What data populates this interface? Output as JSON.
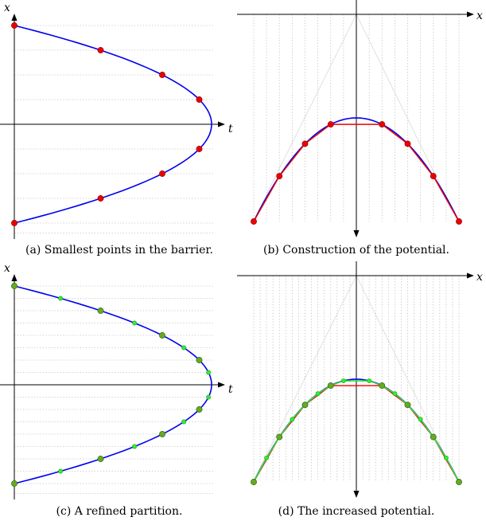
{
  "panels": {
    "a": {
      "caption": "(a) Smallest points in the barrier.",
      "x_label": "x",
      "t_label": "t"
    },
    "b": {
      "caption": "(b) Construction of the potential.",
      "x_label": "x"
    },
    "c": {
      "caption": "(c) A refined partition.",
      "x_label": "x",
      "t_label": "t"
    },
    "d": {
      "caption": "(d) The increased potential.",
      "x_label": "x"
    }
  },
  "colors": {
    "curve": "#0000ee",
    "coarse_point": "#ee0000",
    "refined_point": "#33ee33",
    "overlap_point": "#66aa22",
    "hull_coarse": "#ee0000",
    "hull_refined": "#33dd33",
    "grid": "#b8b8b8"
  },
  "chart_data": [
    {
      "panel": "a",
      "type": "line",
      "title": "Smallest points in the barrier",
      "xlabel": "t",
      "ylabel": "x",
      "curve": "t = 1 - x^2 (parabola opening to the left)",
      "xlim": [
        0,
        1.05
      ],
      "ylim": [
        -1.05,
        1.05
      ],
      "points_x": [
        -1,
        -0.75,
        -0.5,
        -0.25,
        0.25,
        0.5,
        0.75,
        1
      ],
      "point_color": "red",
      "grid_rows_x": [
        -1.1,
        -1,
        -0.75,
        -0.5,
        -0.25,
        0.25,
        0.5,
        0.75,
        1
      ]
    },
    {
      "panel": "b",
      "type": "line",
      "title": "Construction of the potential",
      "xlabel": "x",
      "curve": "y = 1.05 - x^2 (inverted parabola, axis pointing down)",
      "xlim": [
        -1.05,
        1.05
      ],
      "ylim": [
        0,
        1.1
      ],
      "points_x": [
        -1,
        -0.75,
        -0.5,
        -0.25,
        0.25,
        0.5,
        0.75,
        1
      ],
      "point_color": "red",
      "grid_columns_x": [
        -1,
        -0.875,
        -0.75,
        -0.625,
        -0.5,
        -0.375,
        -0.25,
        -0.125,
        0.125,
        0.25,
        0.375,
        0.5,
        0.625,
        0.75,
        0.875,
        1
      ]
    },
    {
      "panel": "c",
      "type": "line",
      "title": "A refined partition",
      "xlabel": "t",
      "ylabel": "x",
      "curve": "t = 1 - x^2",
      "xlim": [
        0,
        1.05
      ],
      "ylim": [
        -1.05,
        1.05
      ],
      "coarse_points_x": [
        -1,
        -0.75,
        -0.5,
        -0.25,
        0.25,
        0.5,
        0.75,
        1
      ],
      "refined_points_x": [
        -0.875,
        -0.625,
        -0.375,
        -0.125,
        0.125,
        0.375,
        0.625,
        0.875
      ],
      "grid_rows_x": [
        -1.1,
        -1,
        -0.875,
        -0.75,
        -0.625,
        -0.5,
        -0.375,
        -0.25,
        -0.125,
        0.125,
        0.25,
        0.375,
        0.5,
        0.625,
        0.75,
        0.875,
        1
      ]
    },
    {
      "panel": "d",
      "type": "line",
      "title": "The increased potential",
      "xlabel": "x",
      "curve": "y = 1.05 - x^2",
      "xlim": [
        -1.05,
        1.05
      ],
      "ylim": [
        0,
        1.1
      ],
      "coarse_points_x": [
        -1,
        -0.75,
        -0.5,
        -0.25,
        0.25,
        0.5,
        0.75,
        1
      ],
      "refined_points_x": [
        -0.875,
        -0.625,
        -0.375,
        -0.125,
        0.125,
        0.375,
        0.625,
        0.875
      ],
      "grid_columns_x": [
        -1,
        -0.9375,
        -0.875,
        -0.8125,
        -0.75,
        -0.6875,
        -0.625,
        -0.5625,
        -0.5,
        -0.4375,
        -0.375,
        -0.3125,
        -0.25,
        -0.1875,
        -0.125,
        -0.0625,
        0.0625,
        0.125,
        0.1875,
        0.25,
        0.3125,
        0.375,
        0.4375,
        0.5,
        0.5625,
        0.625,
        0.6875,
        0.75,
        0.8125,
        0.875,
        0.9375,
        1
      ]
    }
  ]
}
